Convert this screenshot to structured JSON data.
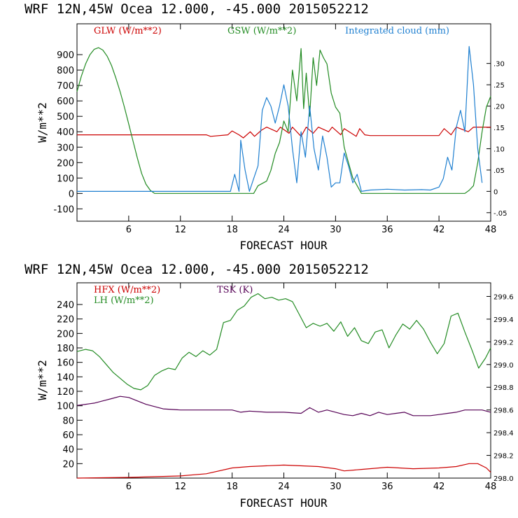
{
  "chart_data": [
    {
      "type": "line",
      "title": "WRF  12N,45W Ocea  12.000, -45.000  2015052212",
      "xlabel": "FORECAST HOUR",
      "ylabel": "W/m**2",
      "xlim": [
        0,
        48
      ],
      "ylim": [
        -180,
        1100
      ],
      "y2lim": [
        -0.07,
        0.393
      ],
      "xticks": [
        "6",
        "12",
        "18",
        "24",
        "30",
        "36",
        "42",
        "48"
      ],
      "yticks": [
        "-100",
        "0",
        "100",
        "200",
        "300",
        "400",
        "500",
        "600",
        "700",
        "800",
        "900"
      ],
      "y2ticks": [
        "-.05",
        "0",
        ".05",
        ".10",
        ".15",
        ".20",
        ".25",
        ".30"
      ],
      "legend": [
        "GLW (W/m**2)",
        "GSW (W/m**2)",
        "Integrated cloud (mm)"
      ],
      "colors": {
        "GLW": "#cc0000",
        "GSW": "#228b22",
        "cloud": "#1e7fd0"
      },
      "series": [
        {
          "name": "GLW",
          "axis": "left",
          "x": [
            0,
            15,
            15.5,
            17.5,
            18,
            18.8,
            19.3,
            20.1,
            20.6,
            21.4,
            22.0,
            23.2,
            23.6,
            24.6,
            25.0,
            26.0,
            26.6,
            27.4,
            28.0,
            29.2,
            29.6,
            30.6,
            31.0,
            32.4,
            32.8,
            33.4,
            34.0,
            42.0,
            42.6,
            43.4,
            44.0,
            45.4,
            46.0,
            47.0,
            48.0
          ],
          "values": [
            380,
            380,
            370,
            380,
            405,
            380,
            360,
            400,
            370,
            410,
            430,
            400,
            430,
            390,
            430,
            370,
            430,
            390,
            430,
            400,
            430,
            380,
            420,
            370,
            420,
            380,
            375,
            375,
            420,
            380,
            430,
            400,
            430,
            430,
            430
          ]
        },
        {
          "name": "GSW",
          "axis": "left",
          "x": [
            0,
            0.5,
            1,
            1.5,
            2,
            2.5,
            3,
            3.5,
            4,
            4.5,
            5,
            5.5,
            6,
            6.5,
            7,
            7.5,
            8,
            8.5,
            9.0,
            20.5,
            21,
            22,
            22.5,
            23,
            23.5,
            24,
            24.5,
            25,
            25.5,
            26,
            26.3,
            26.6,
            27,
            27.4,
            27.8,
            28.2,
            28.6,
            29,
            29.5,
            30,
            30.5,
            31,
            31.5,
            32,
            32.5,
            33.0,
            45,
            45.5,
            46,
            46.5,
            47,
            47.5,
            48
          ],
          "values": [
            660,
            760,
            840,
            900,
            935,
            945,
            930,
            890,
            830,
            750,
            660,
            560,
            450,
            340,
            230,
            130,
            60,
            20,
            0,
            0,
            50,
            80,
            150,
            260,
            330,
            470,
            400,
            800,
            600,
            940,
            550,
            780,
            500,
            880,
            700,
            930,
            880,
            840,
            650,
            560,
            520,
            300,
            200,
            100,
            50,
            0,
            0,
            20,
            50,
            200,
            400,
            560,
            630
          ]
        },
        {
          "name": "Integrated cloud (mm)",
          "axis": "right",
          "x": [
            0,
            8,
            17.8,
            18.3,
            18.8,
            19.0,
            19.5,
            20.0,
            20.5,
            21.0,
            21.5,
            22.0,
            22.5,
            23.0,
            23.5,
            24.0,
            24.5,
            25.0,
            25.5,
            26.0,
            26.5,
            27.0,
            27.5,
            28.0,
            28.5,
            29.0,
            29.5,
            30.0,
            30.5,
            31.0,
            31.5,
            32.0,
            32.5,
            33.0,
            34.0,
            36.0,
            38.0,
            40.0,
            41.0,
            42.0,
            42.5,
            43.0,
            43.5,
            44.0,
            44.5,
            45.0,
            45.5,
            46.0,
            46.5,
            47.0
          ],
          "values": [
            0,
            0,
            0,
            0.04,
            0,
            0.12,
            0.05,
            0,
            0.03,
            0.06,
            0.19,
            0.22,
            0.2,
            0.16,
            0.2,
            0.25,
            0.2,
            0.1,
            0.02,
            0.14,
            0.08,
            0.2,
            0.1,
            0.05,
            0.13,
            0.08,
            0.01,
            0.02,
            0.02,
            0.09,
            0.06,
            0.02,
            0.04,
            0,
            0.003,
            0.005,
            0.003,
            0.004,
            0.003,
            0.01,
            0.03,
            0.08,
            0.05,
            0.15,
            0.19,
            0.14,
            0.34,
            0.25,
            0.1,
            0.02
          ]
        }
      ]
    },
    {
      "type": "line",
      "title": "WRF  12N,45W Ocea  12.000, -45.000  2015052212",
      "xlabel": "FORECAST HOUR",
      "ylabel": "W/m**2",
      "xlim": [
        0,
        48
      ],
      "ylim": [
        0,
        270
      ],
      "y2lim": [
        298.0,
        299.72
      ],
      "xticks": [
        "6",
        "12",
        "18",
        "24",
        "30",
        "36",
        "42",
        "48"
      ],
      "yticks": [
        "20",
        "40",
        "60",
        "80",
        "100",
        "120",
        "140",
        "160",
        "180",
        "200",
        "220",
        "240"
      ],
      "y2ticks": [
        "298.0",
        "298.2",
        "298.4",
        "298.6",
        "298.8",
        "299.0",
        "299.2",
        "299.4",
        "299.6"
      ],
      "legend": [
        "HFX (W/m**2)",
        "LH  (W/m**2)",
        "TSK (K)"
      ],
      "colors": {
        "HFX": "#cc0000",
        "LH": "#228b22",
        "TSK": "#550055"
      },
      "series": [
        {
          "name": "HFX",
          "axis": "left",
          "x": [
            0,
            6,
            12,
            15,
            18,
            20,
            24,
            28,
            30,
            31,
            33,
            36,
            39,
            42,
            44,
            45.5,
            46.5,
            47.5,
            48
          ],
          "values": [
            0,
            1,
            3,
            6,
            14,
            16,
            18,
            16,
            13,
            10,
            12,
            15,
            13,
            14,
            16,
            20,
            20,
            14,
            8
          ]
        },
        {
          "name": "LH",
          "axis": "left",
          "x": [
            0,
            1,
            1.8,
            2.6,
            3.4,
            4.2,
            5.0,
            5.8,
            6.6,
            7.4,
            8.2,
            9.0,
            9.8,
            10.6,
            11.4,
            12.2,
            13.0,
            13.8,
            14.6,
            15.4,
            16.2,
            17.0,
            17.8,
            18.6,
            19.4,
            20.2,
            21.0,
            21.8,
            22.6,
            23.4,
            24.2,
            25.0,
            25.8,
            26.6,
            27.4,
            28.2,
            29.0,
            29.8,
            30.6,
            31.4,
            32.2,
            33.0,
            33.8,
            34.6,
            35.4,
            36.2,
            37.0,
            37.8,
            38.6,
            39.4,
            40.2,
            41.0,
            41.8,
            42.6,
            43.4,
            44.2,
            45.0,
            45.8,
            46.6,
            47.4,
            48.0
          ],
          "values": [
            175,
            178,
            176,
            168,
            157,
            146,
            138,
            130,
            124,
            122,
            128,
            142,
            148,
            152,
            150,
            166,
            174,
            168,
            176,
            170,
            178,
            215,
            218,
            232,
            238,
            250,
            255,
            248,
            250,
            246,
            248,
            244,
            226,
            208,
            214,
            210,
            214,
            203,
            216,
            196,
            208,
            190,
            186,
            202,
            205,
            180,
            198,
            213,
            206,
            218,
            206,
            188,
            172,
            186,
            224,
            228,
            202,
            178,
            152,
            166,
            180
          ]
        },
        {
          "name": "TSK",
          "axis": "right",
          "x": [
            0,
            1,
            2,
            3,
            4,
            5,
            6,
            7,
            8,
            9,
            10,
            12,
            15,
            18,
            19,
            20,
            22,
            24,
            26,
            27,
            28,
            29,
            30,
            31,
            32,
            33,
            34,
            35,
            36,
            37,
            38,
            39,
            40,
            41,
            42,
            43,
            44,
            45,
            46,
            47,
            48
          ],
          "values": [
            298.64,
            298.65,
            298.66,
            298.68,
            298.7,
            298.72,
            298.71,
            298.68,
            298.65,
            298.63,
            298.61,
            298.6,
            298.6,
            298.6,
            298.58,
            298.59,
            298.58,
            298.58,
            298.57,
            298.62,
            298.58,
            298.6,
            298.58,
            298.56,
            298.55,
            298.57,
            298.55,
            298.58,
            298.56,
            298.57,
            298.58,
            298.55,
            298.55,
            298.55,
            298.56,
            298.57,
            298.58,
            298.6,
            298.6,
            298.6,
            298.58
          ]
        }
      ]
    }
  ]
}
